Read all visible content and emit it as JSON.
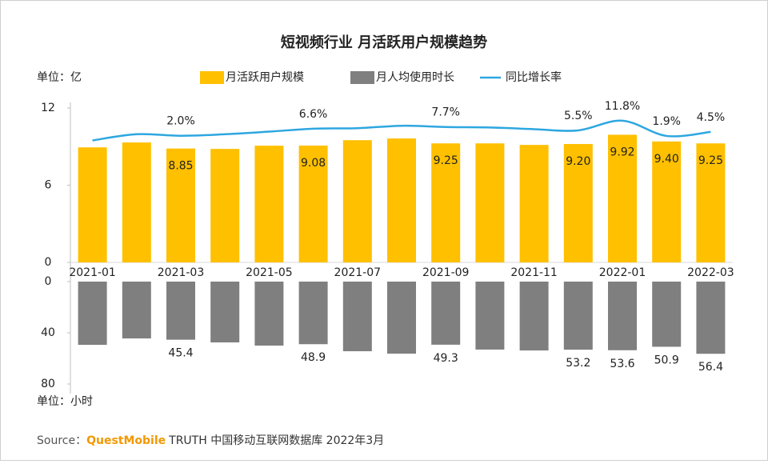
{
  "chart_data": [
    {
      "type": "bar",
      "title": "短视频行业 月活跃用户规模趋势",
      "unit_label": "单位：亿",
      "categories": [
        "2021-01",
        null,
        "2021-03",
        null,
        "2021-05",
        null,
        "2021-07",
        null,
        "2021-09",
        null,
        "2021-11",
        null,
        "2022-01",
        null,
        "2022-03"
      ],
      "ylim": [
        0,
        12
      ],
      "yticks": [
        0,
        6,
        12
      ],
      "y2lim": [
        -80,
        20
      ],
      "series": [
        {
          "name": "月活跃用户规模",
          "color": "#ffc000",
          "values": [
            8.94,
            9.32,
            8.85,
            8.82,
            9.07,
            9.08,
            9.5,
            9.63,
            9.25,
            9.25,
            9.13,
            9.2,
            9.92,
            9.4,
            9.25
          ],
          "value_labels": [
            null,
            null,
            "8.85",
            null,
            null,
            "9.08",
            null,
            null,
            "9.25",
            null,
            null,
            "9.20",
            "9.92",
            "9.40",
            "9.25"
          ]
        },
        {
          "name": "同比增长率",
          "type": "line",
          "axis": "y2",
          "color": "#2ea7e0",
          "values": [
            -1.0,
            3.0,
            2.0,
            3.0,
            4.7,
            6.6,
            6.9,
            8.5,
            7.7,
            7.4,
            6.3,
            5.5,
            11.8,
            1.9,
            4.5
          ],
          "value_labels": [
            null,
            null,
            "2.0%",
            null,
            null,
            "6.6%",
            null,
            null,
            "7.7%",
            null,
            null,
            "5.5%",
            "11.8%",
            "1.9%",
            "4.5%"
          ]
        }
      ]
    },
    {
      "type": "bar",
      "unit_label": "单位：小时",
      "inverted": true,
      "ylim": [
        0,
        80
      ],
      "yticks": [
        0,
        40,
        80
      ],
      "series": [
        {
          "name": "月人均使用时长",
          "color": "#7f7f7f",
          "values": [
            49.4,
            44.4,
            45.4,
            47.5,
            50.0,
            48.9,
            54.4,
            56.3,
            49.3,
            53.1,
            53.8,
            53.2,
            53.6,
            50.9,
            56.4
          ],
          "value_labels": [
            null,
            null,
            "45.4",
            null,
            null,
            "48.9",
            null,
            null,
            "49.3",
            null,
            null,
            "53.2",
            "53.6",
            "50.9",
            "56.4"
          ]
        }
      ]
    }
  ],
  "source": {
    "prefix": "Source：",
    "brand": "QuestMobile",
    "rest": "TRUTH 中国移动互联网数据库 2022年3月"
  }
}
